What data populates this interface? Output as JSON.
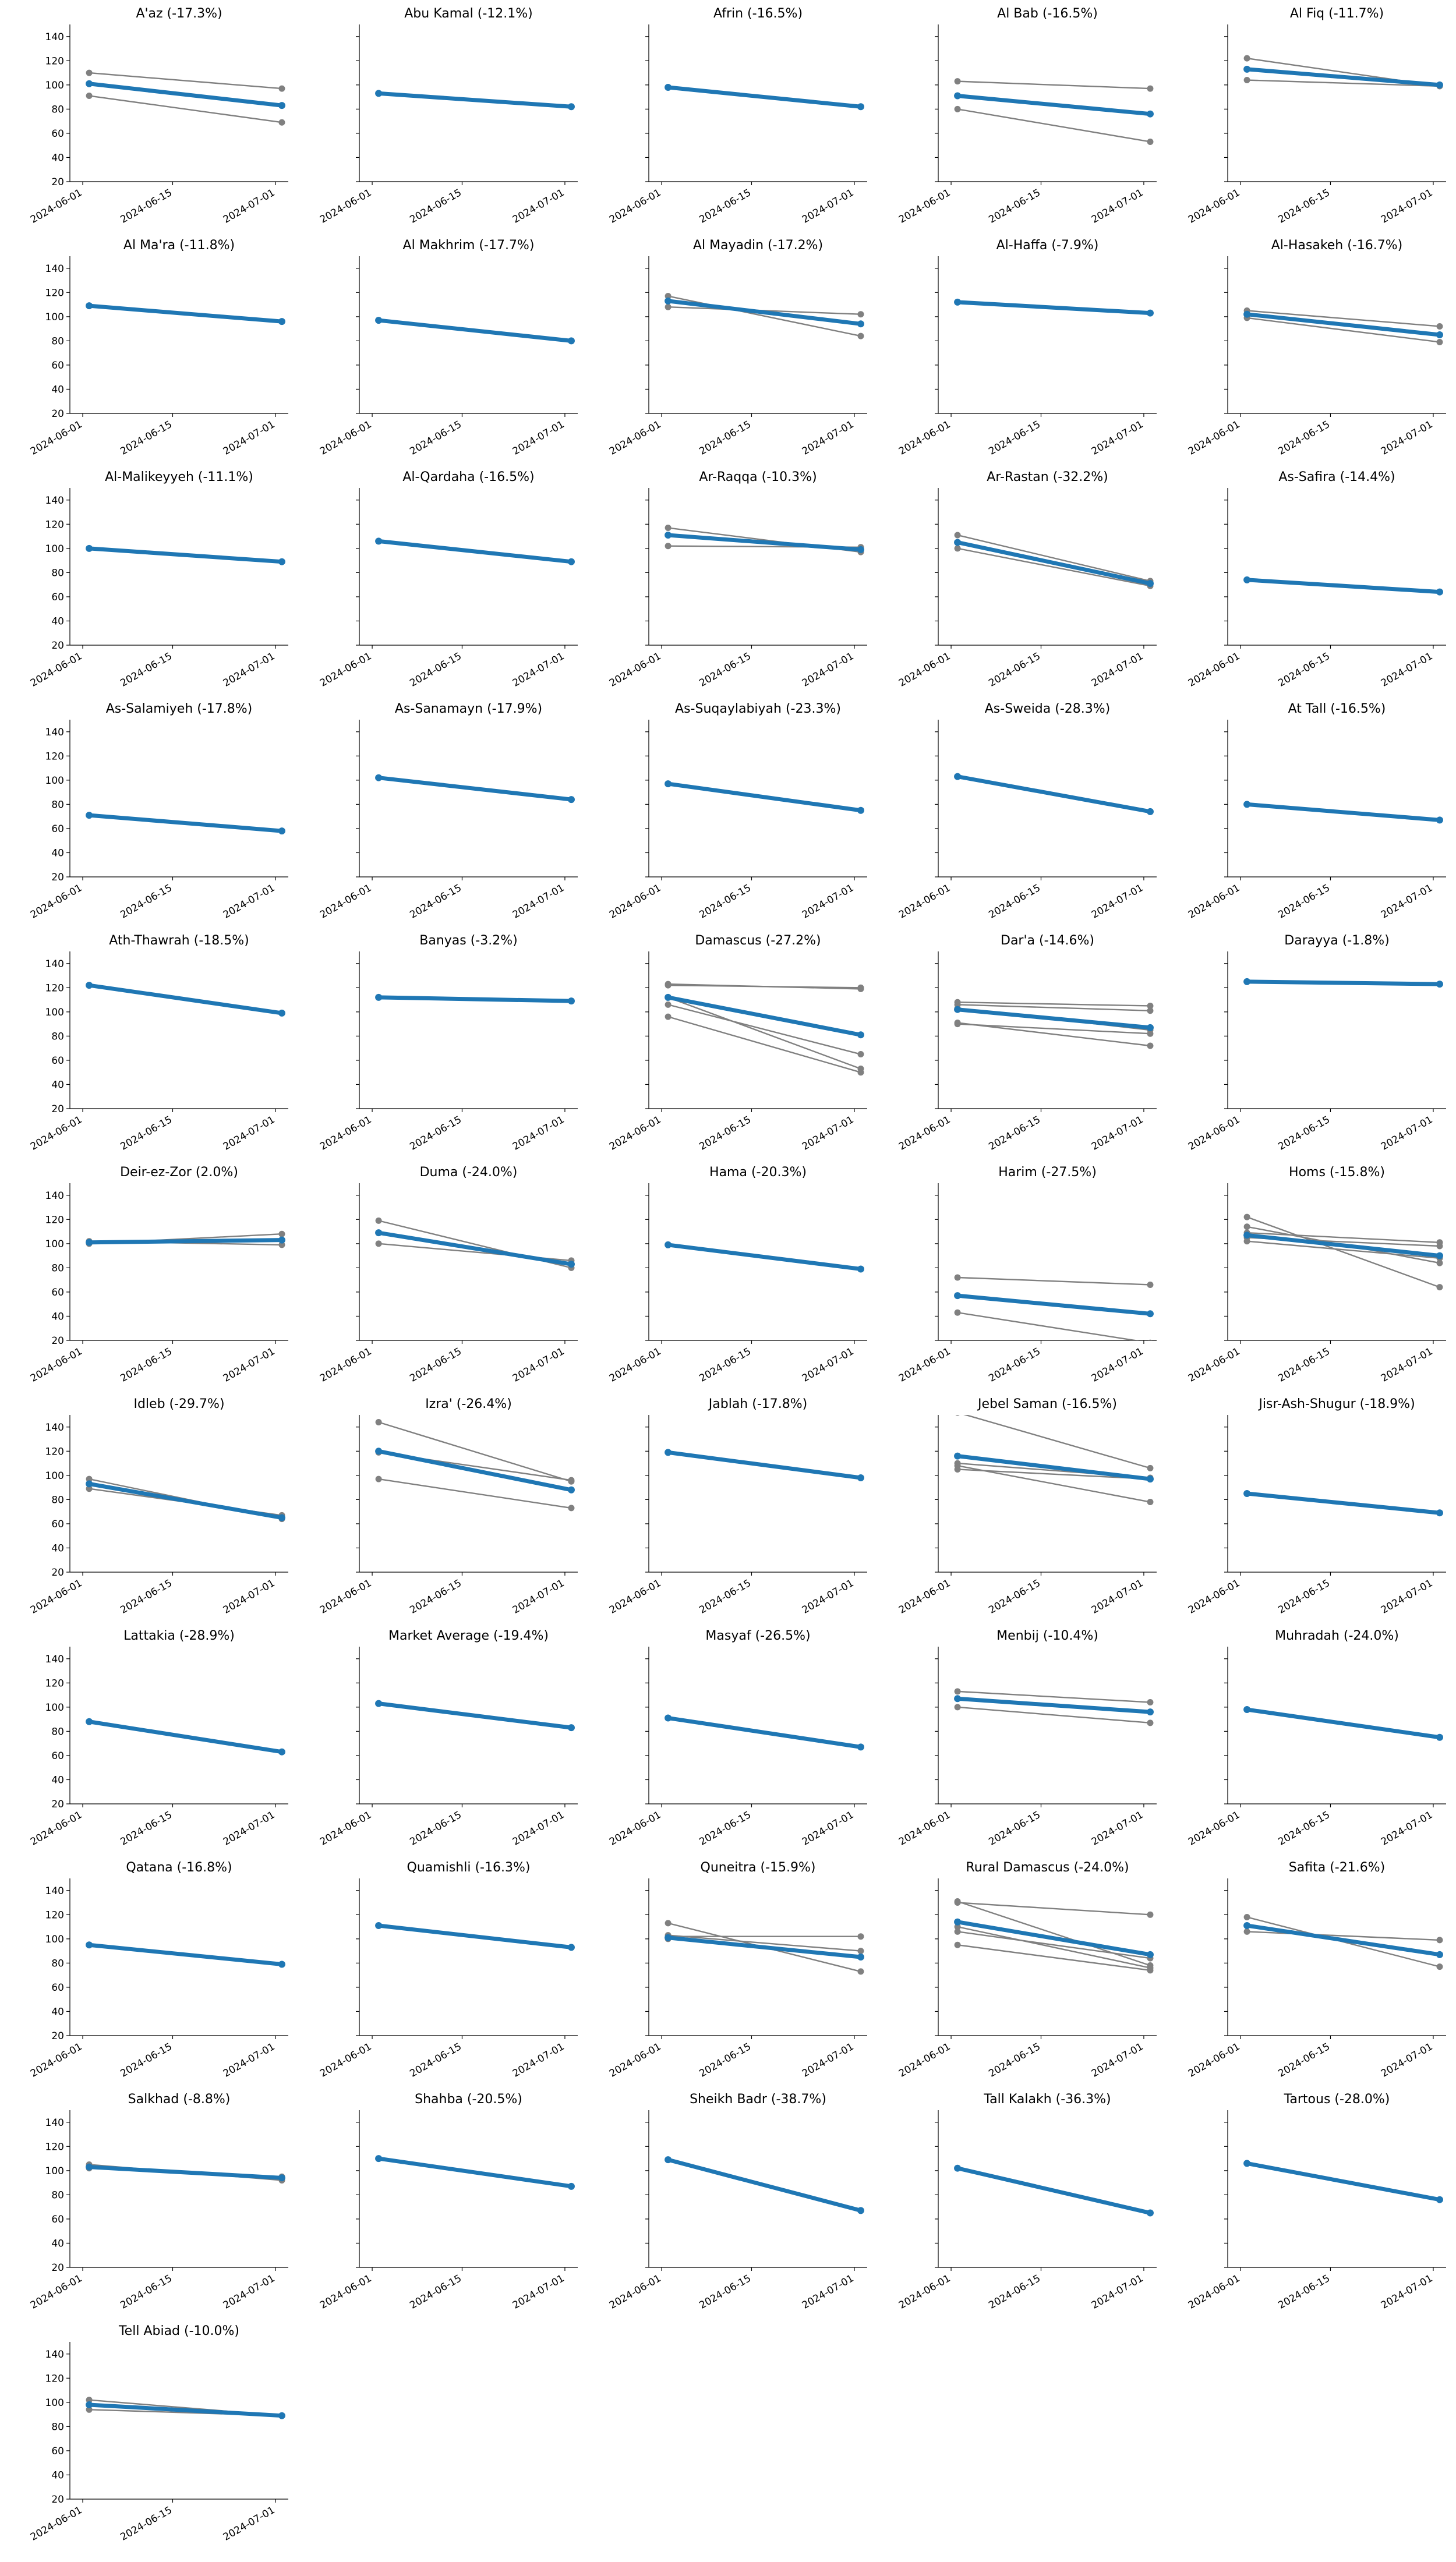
{
  "figure": {
    "rows": 11,
    "cols": 5,
    "shared_y": true,
    "ylim": [
      20,
      150
    ],
    "y_ticks": [
      20,
      40,
      60,
      80,
      100,
      120,
      140
    ],
    "x_tick_labels": [
      "2024-06-01",
      "2024-06-15",
      "2024-07-01"
    ],
    "xlim": [
      "2024-05-30",
      "2024-07-03"
    ],
    "colors": {
      "average": "#1f77b4",
      "items": "#808080",
      "axes": "#000000"
    },
    "spines": "left-bottom",
    "grid": false
  },
  "chart_data": [
    {
      "type": "line",
      "title": "A'az (-17.3%)",
      "x": [
        "2024-06-02",
        "2024-07-02"
      ],
      "series": [
        {
          "values": [
            110,
            97
          ]
        },
        {
          "values": [
            91,
            69
          ]
        },
        {
          "average": true,
          "values": [
            101,
            83
          ]
        }
      ]
    },
    {
      "type": "line",
      "title": "Abu Kamal (-12.1%)",
      "x": [
        "2024-06-02",
        "2024-07-02"
      ],
      "series": [
        {
          "average": true,
          "values": [
            93,
            82
          ]
        }
      ]
    },
    {
      "type": "line",
      "title": "Afrin (-16.5%)",
      "x": [
        "2024-06-02",
        "2024-07-02"
      ],
      "series": [
        {
          "average": true,
          "values": [
            98,
            82
          ]
        }
      ]
    },
    {
      "type": "line",
      "title": "Al Bab (-16.5%)",
      "x": [
        "2024-06-02",
        "2024-07-02"
      ],
      "series": [
        {
          "values": [
            103,
            97
          ]
        },
        {
          "values": [
            80,
            53
          ]
        },
        {
          "average": true,
          "values": [
            91,
            76
          ]
        }
      ]
    },
    {
      "type": "line",
      "title": "Al Fiq (-11.7%)",
      "x": [
        "2024-06-02",
        "2024-07-02"
      ],
      "series": [
        {
          "values": [
            122,
            99
          ]
        },
        {
          "values": [
            104,
            99
          ]
        },
        {
          "average": true,
          "values": [
            113,
            100
          ]
        }
      ]
    },
    {
      "type": "line",
      "title": "Al Ma'ra (-11.8%)",
      "x": [
        "2024-06-02",
        "2024-07-02"
      ],
      "series": [
        {
          "average": true,
          "values": [
            109,
            96
          ]
        }
      ]
    },
    {
      "type": "line",
      "title": "Al Makhrim (-17.7%)",
      "x": [
        "2024-06-02",
        "2024-07-02"
      ],
      "series": [
        {
          "average": true,
          "values": [
            97,
            80
          ]
        }
      ]
    },
    {
      "type": "line",
      "title": "Al Mayadin (-17.2%)",
      "x": [
        "2024-06-02",
        "2024-07-02"
      ],
      "series": [
        {
          "values": [
            117,
            84
          ]
        },
        {
          "values": [
            108,
            102
          ]
        },
        {
          "average": true,
          "values": [
            113,
            94
          ]
        }
      ]
    },
    {
      "type": "line",
      "title": "Al-Haffa (-7.9%)",
      "x": [
        "2024-06-02",
        "2024-07-02"
      ],
      "series": [
        {
          "average": true,
          "values": [
            112,
            103
          ]
        }
      ]
    },
    {
      "type": "line",
      "title": "Al-Hasakeh (-16.7%)",
      "x": [
        "2024-06-02",
        "2024-07-02"
      ],
      "series": [
        {
          "values": [
            105,
            92
          ]
        },
        {
          "values": [
            99,
            79
          ]
        },
        {
          "average": true,
          "values": [
            102,
            85
          ]
        }
      ]
    },
    {
      "type": "line",
      "title": "Al-Malikeyyeh (-11.1%)",
      "x": [
        "2024-06-02",
        "2024-07-02"
      ],
      "series": [
        {
          "average": true,
          "values": [
            100,
            89
          ]
        }
      ]
    },
    {
      "type": "line",
      "title": "Al-Qardaha (-16.5%)",
      "x": [
        "2024-06-02",
        "2024-07-02"
      ],
      "series": [
        {
          "average": true,
          "values": [
            106,
            89
          ]
        }
      ]
    },
    {
      "type": "line",
      "title": "Ar-Raqqa (-10.3%)",
      "x": [
        "2024-06-02",
        "2024-07-02"
      ],
      "series": [
        {
          "values": [
            117,
            97
          ]
        },
        {
          "values": [
            102,
            101
          ]
        },
        {
          "average": true,
          "values": [
            111,
            99
          ]
        }
      ]
    },
    {
      "type": "line",
      "title": "Ar-Rastan (-32.2%)",
      "x": [
        "2024-06-02",
        "2024-07-02"
      ],
      "series": [
        {
          "values": [
            111,
            73
          ]
        },
        {
          "values": [
            100,
            69
          ]
        },
        {
          "average": true,
          "values": [
            105,
            71
          ]
        }
      ]
    },
    {
      "type": "line",
      "title": "As-Safira (-14.4%)",
      "x": [
        "2024-06-02",
        "2024-07-02"
      ],
      "series": [
        {
          "average": true,
          "values": [
            74,
            64
          ]
        }
      ]
    },
    {
      "type": "line",
      "title": "As-Salamiyeh (-17.8%)",
      "x": [
        "2024-06-02",
        "2024-07-02"
      ],
      "series": [
        {
          "average": true,
          "values": [
            71,
            58
          ]
        }
      ]
    },
    {
      "type": "line",
      "title": "As-Sanamayn (-17.9%)",
      "x": [
        "2024-06-02",
        "2024-07-02"
      ],
      "series": [
        {
          "average": true,
          "values": [
            102,
            84
          ]
        }
      ]
    },
    {
      "type": "line",
      "title": "As-Suqaylabiyah (-23.3%)",
      "x": [
        "2024-06-02",
        "2024-07-02"
      ],
      "series": [
        {
          "average": true,
          "values": [
            97,
            75
          ]
        }
      ]
    },
    {
      "type": "line",
      "title": "As-Sweida (-28.3%)",
      "x": [
        "2024-06-02",
        "2024-07-02"
      ],
      "series": [
        {
          "average": true,
          "values": [
            103,
            74
          ]
        }
      ]
    },
    {
      "type": "line",
      "title": "At Tall (-16.5%)",
      "x": [
        "2024-06-02",
        "2024-07-02"
      ],
      "series": [
        {
          "average": true,
          "values": [
            80,
            67
          ]
        }
      ]
    },
    {
      "type": "line",
      "title": "Ath-Thawrah (-18.5%)",
      "x": [
        "2024-06-02",
        "2024-07-02"
      ],
      "series": [
        {
          "average": true,
          "values": [
            122,
            99
          ]
        }
      ]
    },
    {
      "type": "line",
      "title": "Banyas (-3.2%)",
      "x": [
        "2024-06-02",
        "2024-07-02"
      ],
      "series": [
        {
          "average": true,
          "values": [
            112,
            109
          ]
        }
      ]
    },
    {
      "type": "line",
      "title": "Damascus (-27.2%)",
      "x": [
        "2024-06-02",
        "2024-07-02"
      ],
      "series": [
        {
          "values": [
            122,
            120
          ]
        },
        {
          "values": [
            123,
            119
          ]
        },
        {
          "values": [
            106,
            65
          ]
        },
        {
          "values": [
            96,
            50
          ]
        },
        {
          "values": [
            112,
            53
          ]
        },
        {
          "average": true,
          "values": [
            112,
            81
          ]
        }
      ]
    },
    {
      "type": "line",
      "title": "Dar'a (-14.6%)",
      "x": [
        "2024-06-02",
        "2024-07-02"
      ],
      "series": [
        {
          "values": [
            108,
            105
          ]
        },
        {
          "values": [
            106,
            101
          ]
        },
        {
          "values": [
            91,
            72
          ]
        },
        {
          "values": [
            90,
            82
          ]
        },
        {
          "values": [
            103,
            85
          ]
        },
        {
          "average": true,
          "values": [
            102,
            87
          ]
        }
      ]
    },
    {
      "type": "line",
      "title": "Darayya (-1.8%)",
      "x": [
        "2024-06-02",
        "2024-07-02"
      ],
      "series": [
        {
          "average": true,
          "values": [
            125,
            123
          ]
        }
      ]
    },
    {
      "type": "line",
      "title": "Deir-ez-Zor (2.0%)",
      "x": [
        "2024-06-02",
        "2024-07-02"
      ],
      "series": [
        {
          "values": [
            100,
            108
          ]
        },
        {
          "values": [
            102,
            99
          ]
        },
        {
          "average": true,
          "values": [
            101,
            103
          ]
        }
      ]
    },
    {
      "type": "line",
      "title": "Duma (-24.0%)",
      "x": [
        "2024-06-02",
        "2024-07-02"
      ],
      "series": [
        {
          "values": [
            119,
            80
          ]
        },
        {
          "values": [
            100,
            86
          ]
        },
        {
          "average": true,
          "values": [
            109,
            83
          ]
        }
      ]
    },
    {
      "type": "line",
      "title": "Hama (-20.3%)",
      "x": [
        "2024-06-02",
        "2024-07-02"
      ],
      "series": [
        {
          "average": true,
          "values": [
            99,
            79
          ]
        }
      ]
    },
    {
      "type": "line",
      "title": "Harim (-27.5%)",
      "x": [
        "2024-06-02",
        "2024-07-02"
      ],
      "series": [
        {
          "values": [
            72,
            66
          ]
        },
        {
          "values": [
            43,
            18
          ]
        },
        {
          "average": true,
          "values": [
            57,
            42
          ]
        }
      ]
    },
    {
      "type": "line",
      "title": "Homs (-15.8%)",
      "x": [
        "2024-06-02",
        "2024-07-02"
      ],
      "series": [
        {
          "values": [
            122,
            64
          ]
        },
        {
          "values": [
            114,
            84
          ]
        },
        {
          "values": [
            109,
            101
          ]
        },
        {
          "values": [
            105,
            98
          ]
        },
        {
          "values": [
            102,
            88
          ]
        },
        {
          "average": true,
          "values": [
            107,
            90
          ]
        }
      ]
    },
    {
      "type": "line",
      "title": "Idleb (-29.7%)",
      "x": [
        "2024-06-02",
        "2024-07-02"
      ],
      "series": [
        {
          "values": [
            97,
            64
          ]
        },
        {
          "values": [
            89,
            67
          ]
        },
        {
          "average": true,
          "values": [
            93,
            65
          ]
        }
      ]
    },
    {
      "type": "line",
      "title": "Izra' (-26.4%)",
      "x": [
        "2024-06-02",
        "2024-07-02"
      ],
      "series": [
        {
          "values": [
            144,
            95
          ]
        },
        {
          "values": [
            97,
            73
          ]
        },
        {
          "values": [
            119,
            96
          ]
        },
        {
          "average": true,
          "values": [
            120,
            88
          ]
        }
      ]
    },
    {
      "type": "line",
      "title": "Jablah (-17.8%)",
      "x": [
        "2024-06-02",
        "2024-07-02"
      ],
      "series": [
        {
          "average": true,
          "values": [
            119,
            98
          ]
        }
      ]
    },
    {
      "type": "line",
      "title": "Jebel Saman (-16.5%)",
      "x": [
        "2024-06-02",
        "2024-07-02"
      ],
      "series": [
        {
          "values": [
            152,
            106
          ]
        },
        {
          "values": [
            108,
            78
          ]
        },
        {
          "values": [
            105,
            97
          ]
        },
        {
          "values": [
            110,
            98
          ]
        },
        {
          "average": true,
          "values": [
            116,
            97
          ]
        }
      ]
    },
    {
      "type": "line",
      "title": "Jisr-Ash-Shugur (-18.9%)",
      "x": [
        "2024-06-02",
        "2024-07-02"
      ],
      "series": [
        {
          "average": true,
          "values": [
            85,
            69
          ]
        }
      ]
    },
    {
      "type": "line",
      "title": "Lattakia (-28.9%)",
      "x": [
        "2024-06-02",
        "2024-07-02"
      ],
      "series": [
        {
          "average": true,
          "values": [
            88,
            63
          ]
        }
      ]
    },
    {
      "type": "line",
      "title": "Market Average (-19.4%)",
      "x": [
        "2024-06-02",
        "2024-07-02"
      ],
      "series": [
        {
          "average": true,
          "values": [
            103,
            83
          ]
        }
      ]
    },
    {
      "type": "line",
      "title": "Masyaf (-26.5%)",
      "x": [
        "2024-06-02",
        "2024-07-02"
      ],
      "series": [
        {
          "average": true,
          "values": [
            91,
            67
          ]
        }
      ]
    },
    {
      "type": "line",
      "title": "Menbij (-10.4%)",
      "x": [
        "2024-06-02",
        "2024-07-02"
      ],
      "series": [
        {
          "values": [
            113,
            104
          ]
        },
        {
          "values": [
            100,
            87
          ]
        },
        {
          "average": true,
          "values": [
            107,
            96
          ]
        }
      ]
    },
    {
      "type": "line",
      "title": "Muhradah (-24.0%)",
      "x": [
        "2024-06-02",
        "2024-07-02"
      ],
      "series": [
        {
          "average": true,
          "values": [
            98,
            75
          ]
        }
      ]
    },
    {
      "type": "line",
      "title": "Qatana (-16.8%)",
      "x": [
        "2024-06-02",
        "2024-07-02"
      ],
      "series": [
        {
          "average": true,
          "values": [
            95,
            79
          ]
        }
      ]
    },
    {
      "type": "line",
      "title": "Quamishli (-16.3%)",
      "x": [
        "2024-06-02",
        "2024-07-02"
      ],
      "series": [
        {
          "average": true,
          "values": [
            111,
            93
          ]
        }
      ]
    },
    {
      "type": "line",
      "title": "Quneitra (-15.9%)",
      "x": [
        "2024-06-02",
        "2024-07-02"
      ],
      "series": [
        {
          "values": [
            113,
            73
          ]
        },
        {
          "values": [
            102,
            102
          ]
        },
        {
          "values": [
            100,
            85
          ]
        },
        {
          "values": [
            103,
            90
          ]
        },
        {
          "average": true,
          "values": [
            101,
            85
          ]
        }
      ]
    },
    {
      "type": "line",
      "title": "Rural Damascus (-24.0%)",
      "x": [
        "2024-06-02",
        "2024-07-02"
      ],
      "series": [
        {
          "values": [
            130,
            120
          ]
        },
        {
          "values": [
            131,
            78
          ]
        },
        {
          "values": [
            106,
            84
          ]
        },
        {
          "values": [
            95,
            74
          ]
        },
        {
          "values": [
            110,
            76
          ]
        },
        {
          "average": true,
          "values": [
            114,
            87
          ]
        }
      ]
    },
    {
      "type": "line",
      "title": "Safita (-21.6%)",
      "x": [
        "2024-06-02",
        "2024-07-02"
      ],
      "series": [
        {
          "values": [
            118,
            77
          ]
        },
        {
          "values": [
            106,
            99
          ]
        },
        {
          "average": true,
          "values": [
            111,
            87
          ]
        }
      ]
    },
    {
      "type": "line",
      "title": "Salkhad (-8.8%)",
      "x": [
        "2024-06-02",
        "2024-07-02"
      ],
      "series": [
        {
          "values": [
            105,
            92
          ]
        },
        {
          "values": [
            102,
            95
          ]
        },
        {
          "average": true,
          "values": [
            103,
            94
          ]
        }
      ]
    },
    {
      "type": "line",
      "title": "Shahba (-20.5%)",
      "x": [
        "2024-06-02",
        "2024-07-02"
      ],
      "series": [
        {
          "average": true,
          "values": [
            110,
            87
          ]
        }
      ]
    },
    {
      "type": "line",
      "title": "Sheikh Badr (-38.7%)",
      "x": [
        "2024-06-02",
        "2024-07-02"
      ],
      "series": [
        {
          "average": true,
          "values": [
            109,
            67
          ]
        }
      ]
    },
    {
      "type": "line",
      "title": "Tall Kalakh (-36.3%)",
      "x": [
        "2024-06-02",
        "2024-07-02"
      ],
      "series": [
        {
          "average": true,
          "values": [
            102,
            65
          ]
        }
      ]
    },
    {
      "type": "line",
      "title": "Tartous (-28.0%)",
      "x": [
        "2024-06-02",
        "2024-07-02"
      ],
      "series": [
        {
          "average": true,
          "values": [
            106,
            76
          ]
        }
      ]
    },
    {
      "type": "line",
      "title": "Tell Abiad (-10.0%)",
      "x": [
        "2024-06-02",
        "2024-07-02"
      ],
      "series": [
        {
          "values": [
            102,
            89
          ]
        },
        {
          "values": [
            94,
            89
          ]
        },
        {
          "average": true,
          "values": [
            98,
            89
          ]
        }
      ]
    }
  ]
}
